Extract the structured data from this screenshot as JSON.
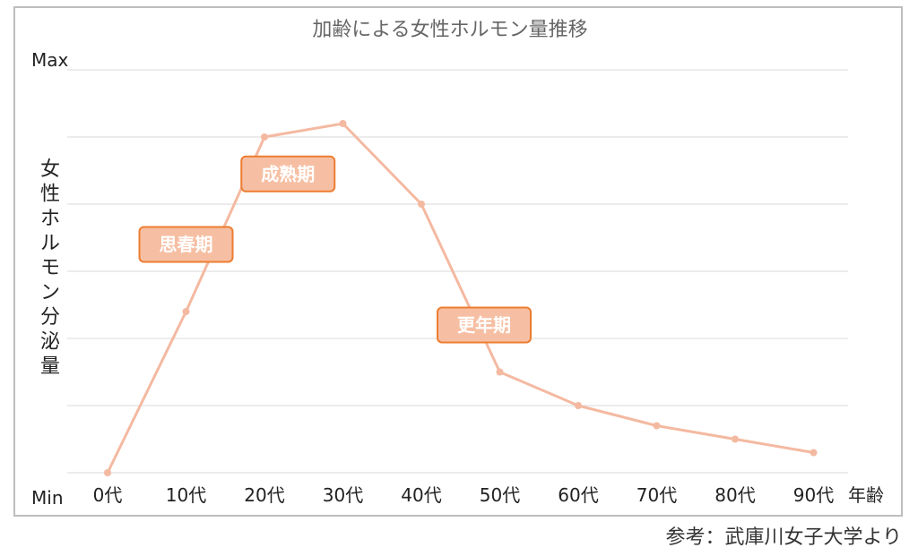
{
  "chart_data": {
    "type": "line",
    "title": "加齢による女性ホルモン量推移",
    "xlabel": "年齢",
    "ylabel": "女性ホルモン分泌量",
    "y_axis_labels": {
      "min": "Min",
      "max": "Max"
    },
    "ylim": [
      0,
      6
    ],
    "grid": true,
    "categories": [
      "0代",
      "10代",
      "20代",
      "30代",
      "40代",
      "50代",
      "60代",
      "70代",
      "80代",
      "90代"
    ],
    "series": [
      {
        "values": [
          0,
          2.4,
          5.0,
          5.2,
          4.0,
          1.5,
          1.0,
          0.7,
          0.5,
          0.3
        ]
      }
    ],
    "annotations": [
      {
        "text": "思春期",
        "x": 10,
        "y": 3.4
      },
      {
        "text": "成熟期",
        "x": 23,
        "y": 4.45
      },
      {
        "text": "更年期",
        "x": 48,
        "y": 2.2
      }
    ],
    "colors": {
      "line": "#f4b9a1",
      "annotation_fill": "#f6bfa3",
      "annotation_border": "#ed7d31",
      "grid": "#d9d9d9",
      "frame": "#bdbdbd"
    }
  },
  "source_note": "参考：武庫川女子大学より"
}
